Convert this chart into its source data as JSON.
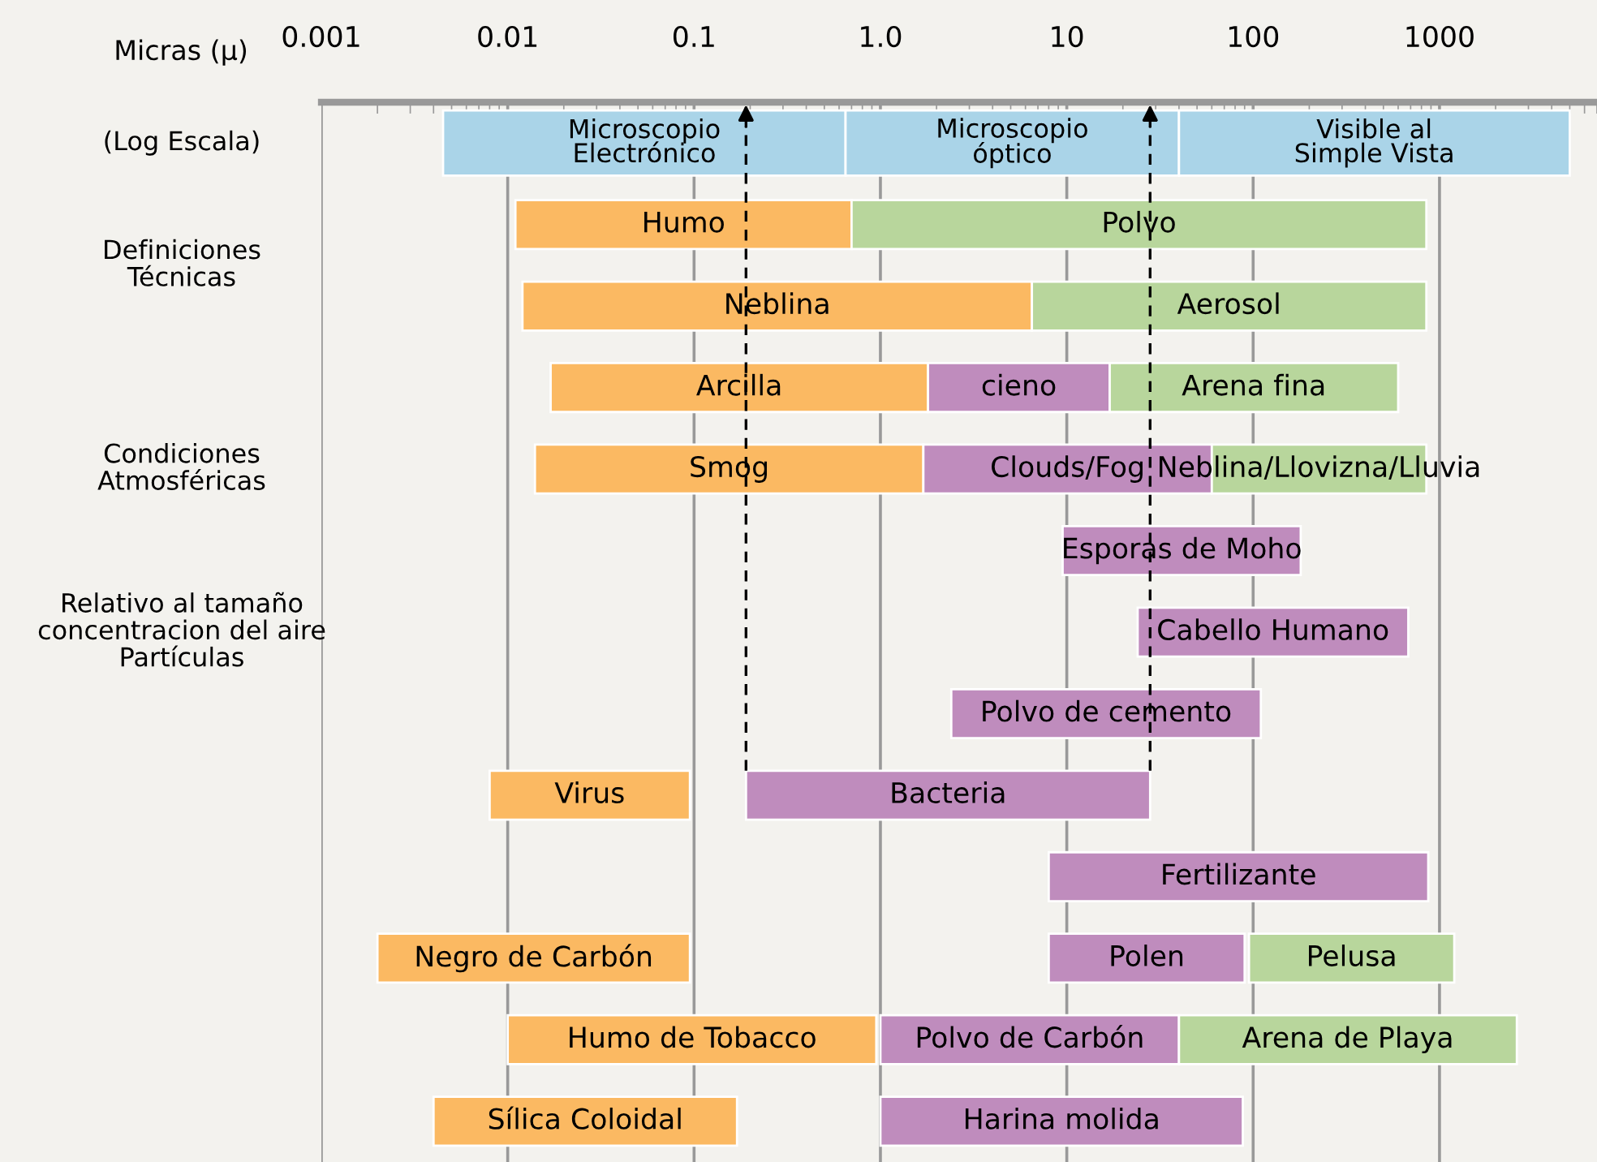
{
  "chart_data": {
    "type": "bar",
    "orientation": "horizontal",
    "xlabel": "Micras (μ)",
    "log": "x",
    "grid": "x",
    "tick_labels": "x",
    "categories": [
      null,
      null,
      null,
      null,
      null,
      null,
      null,
      null,
      null,
      null,
      null,
      null,
      null
    ],
    "xlim": [
      0.001,
      7000
    ],
    "xticks": [
      {
        "value": 0.001,
        "label": "0.001"
      },
      {
        "value": 0.01,
        "label": "0.01"
      },
      {
        "value": 0.1,
        "label": "0.1"
      },
      {
        "value": 1,
        "label": "1.0"
      },
      {
        "value": 10,
        "label": "10"
      },
      {
        "value": 100,
        "label": "100"
      },
      {
        "value": 1000,
        "label": "1000"
      }
    ],
    "annotations": [
      "(Log Escala)",
      "Definiciones\nTécnicas",
      "Condiciones\nAtmosféricas",
      "Relativo al tamaño\nconcentracion del aire\nPartículas"
    ],
    "series": [
      {
        "values": [
          0.6455,
          0.689,
          6.488,
          1.783,
          1.686,
          170.5,
          656,
          107.6,
          0.087,
          862,
          0.093,
          0.94,
          0.166
        ],
        "base": [
          0.0045,
          0.011,
          0.012,
          0.017,
          0.014,
          9.5,
          24,
          2.4,
          0.008,
          8,
          0.002,
          0.01,
          0.004
        ],
        "colors": [
          "#aad4e8",
          "#fbb962",
          "#fbb962",
          "#fbb962",
          "#fbb962",
          "#bf8cbd",
          "#bf8cbd",
          "#bf8cbd",
          "#fbb962",
          "#bf8cbd",
          "#fbb962",
          "#fbb962",
          "#fbb962"
        ],
        "value_labels": [
          "Microscopio\nElectrónico",
          "Humo",
          "Neblina",
          "Arcilla",
          "Smog",
          "Esporas de Moho",
          "Cabello Humano",
          "Polvo de cemento",
          "Virus",
          "Fertilizante",
          "Negro de Carbón",
          "Humo de Tobacco",
          "Sílica Coloidal"
        ]
      },
      {
        "values": [
          39.35,
          849.3,
          843.5,
          15.2,
          58.3,
          null,
          null,
          null,
          27.81,
          null,
          82,
          39,
          87
        ],
        "base": [
          0.65,
          0.7,
          6.5,
          1.8,
          1.7,
          null,
          null,
          null,
          0.19,
          null,
          8,
          1.0,
          1.0
        ],
        "colors": [
          "#aad4e8",
          "#b8d69c",
          "#b8d69c",
          "#bf8cbd",
          "#bf8cbd",
          null,
          null,
          null,
          "#bf8cbd",
          null,
          "#bf8cbd",
          "#bf8cbd",
          "#bf8cbd"
        ],
        "value_labels": [
          "Microscopio\nóptico",
          "Polvo",
          "Aerosol",
          "cieno",
          "Clouds/Fog",
          null,
          null,
          null,
          "Bacteria",
          null,
          "Polen",
          "Polvo de Carbón",
          "Harina molida"
        ]
      },
      {
        "values": [
          4960,
          null,
          null,
          583,
          790,
          null,
          null,
          null,
          null,
          null,
          1105,
          2560,
          null
        ],
        "base": [
          40,
          null,
          null,
          17,
          60,
          null,
          null,
          null,
          null,
          null,
          95,
          40,
          null
        ],
        "colors": [
          "#aad4e8",
          null,
          null,
          "#b8d69c",
          "#b8d69c",
          null,
          null,
          null,
          null,
          null,
          "#b8d69c",
          "#b8d69c",
          null
        ],
        "value_labels": [
          "Visible al\nSimple Vista",
          null,
          null,
          "Arena fina",
          "Neblina/Llovizna/Lluvia",
          null,
          null,
          null,
          null,
          null,
          "Pelusa",
          "Arena de Playa",
          null
        ]
      }
    ],
    "ref_lines": [
      {
        "axis": "x",
        "value": 0.19,
        "label": null,
        "line_style": "dashed",
        "color": "#000000"
      },
      {
        "axis": "x",
        "value": 28,
        "label": null,
        "line_style": "dashed",
        "color": "#000000"
      }
    ]
  }
}
